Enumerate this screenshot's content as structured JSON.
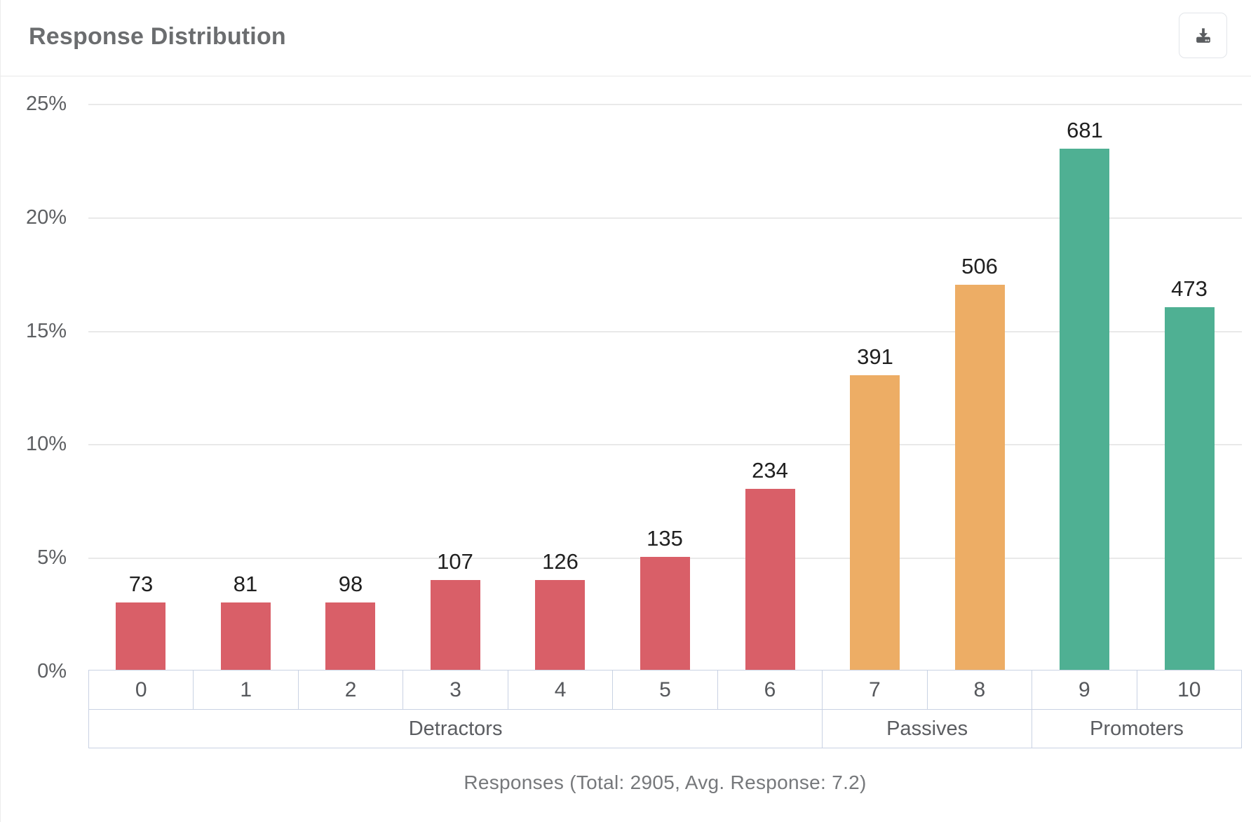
{
  "header": {
    "title": "Response Distribution"
  },
  "toolbar": {
    "download_button": "download"
  },
  "chart_data": {
    "type": "bar",
    "title": "Response Distribution",
    "categories": [
      "0",
      "1",
      "2",
      "3",
      "4",
      "5",
      "6",
      "7",
      "8",
      "9",
      "10"
    ],
    "values": [
      73,
      81,
      98,
      107,
      126,
      135,
      234,
      391,
      506,
      681,
      473
    ],
    "plotted_percent": [
      3,
      3,
      3,
      4,
      4,
      5,
      8,
      13,
      17,
      23,
      16
    ],
    "y_axis": {
      "tick_labels": [
        "0%",
        "5%",
        "10%",
        "15%",
        "20%",
        "25%"
      ],
      "tick_values": [
        0,
        5,
        10,
        15,
        20,
        25
      ],
      "range": [
        0,
        25
      ],
      "unit": "percent",
      "grid": "horizontal"
    },
    "groups": [
      {
        "label": "Detractors",
        "span": 7,
        "color": "#d95f68"
      },
      {
        "label": "Passives",
        "span": 2,
        "color": "#edad65"
      },
      {
        "label": "Promoters",
        "span": 2,
        "color": "#4fb093"
      }
    ],
    "legend": "none",
    "xlabel": "Responses (Total: 2905, Avg. Response: 7.2)",
    "total_responses": 2905,
    "avg_response": 7.2
  },
  "footer": {
    "caption": "Responses (Total: 2905, Avg. Response: 7.2)"
  },
  "colors": {
    "detractor": "#d95f68",
    "passive": "#edad65",
    "promoter": "#4fb093",
    "grid": "#e9e9e9",
    "table_border": "#c9d2e3",
    "title_text": "#6b6d6f",
    "axis_text": "#56585c",
    "icon": "#595c5f"
  }
}
